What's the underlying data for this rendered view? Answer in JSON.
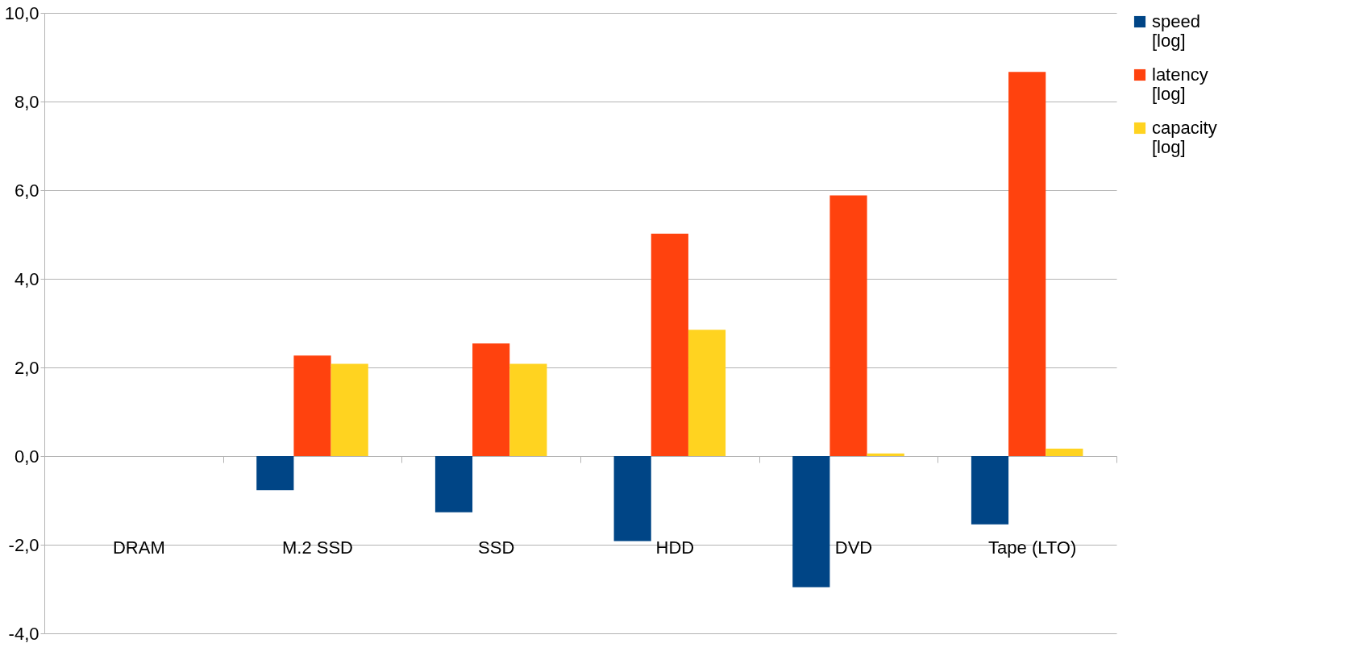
{
  "chart_data": {
    "type": "bar",
    "categories": [
      "DRAM",
      "M.2 SSD",
      "SSD",
      "HDD",
      "DVD",
      "Tape (LTO)"
    ],
    "series": [
      {
        "name": "speed [log]",
        "color": "#004586",
        "values": [
          0,
          -0.77,
          -1.27,
          -1.92,
          -2.96,
          -1.54
        ]
      },
      {
        "name": "latency [log]",
        "color": "#ff420e",
        "values": [
          0,
          2.27,
          2.54,
          5.02,
          5.88,
          8.67
        ]
      },
      {
        "name": "capacity [log]",
        "color": "#ffd320",
        "values": [
          0,
          2.08,
          2.08,
          2.85,
          0.06,
          0.17
        ]
      }
    ],
    "ylim": [
      -4,
      10
    ],
    "yticks": [
      {
        "value": -4,
        "label": "-4,0"
      },
      {
        "value": -2,
        "label": "-2,0"
      },
      {
        "value": 0,
        "label": "0,0"
      },
      {
        "value": 2,
        "label": "2,0"
      },
      {
        "value": 4,
        "label": "4,0"
      },
      {
        "value": 6,
        "label": "6,0"
      },
      {
        "value": 8,
        "label": "8,0"
      },
      {
        "value": 10,
        "label": "10,0"
      }
    ],
    "grid": "y",
    "legend": "right"
  }
}
